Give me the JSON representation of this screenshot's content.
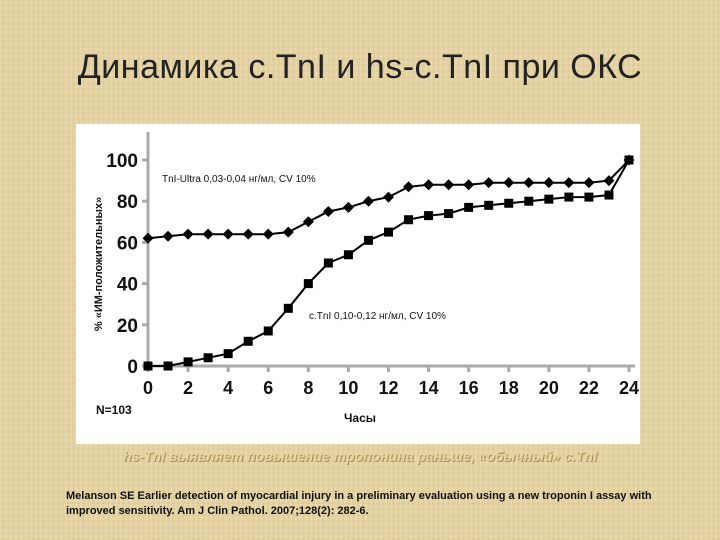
{
  "slide": {
    "title": "Динамика c.TnI и hs-c.TnI при ОКС",
    "caption": "hs-TnI выявляет повышение тропонина раньше, «обычный» c.TnI",
    "reference": "Melanson SE Earlier detection of myocardial injury in a preliminary evaluation using a new troponin I assay with improved sensitivity. Am J Clin Pathol. 2007;128(2): 282-6."
  },
  "chart_data": {
    "type": "line",
    "xlabel": "Часы",
    "ylabel": "% «ИМ-положительных»",
    "xlim": [
      0,
      24
    ],
    "ylim": [
      0,
      100
    ],
    "x_ticks": [
      "0",
      "2",
      "4",
      "6",
      "8",
      "10",
      "12",
      "14",
      "16",
      "18",
      "20",
      "22",
      "24"
    ],
    "y_ticks": [
      "0",
      "20",
      "40",
      "60",
      "80",
      "100"
    ],
    "grid": false,
    "legend": "none",
    "note": "N=103",
    "series": [
      {
        "name": "TnI-Ultra 0,03-0,04 нг/мл, CV 10%",
        "marker": "diamond",
        "color": "#000000",
        "x": [
          0,
          1,
          2,
          3,
          4,
          5,
          6,
          7,
          8,
          9,
          10,
          11,
          12,
          13,
          14,
          15,
          16,
          17,
          18,
          19,
          20,
          21,
          22,
          23,
          24
        ],
        "y": [
          62,
          63,
          64,
          64,
          64,
          64,
          64,
          65,
          70,
          75,
          77,
          80,
          82,
          87,
          88,
          88,
          88,
          89,
          89,
          89,
          89,
          89,
          89,
          90,
          100
        ]
      },
      {
        "name": "c.TnI 0,10-0,12 нг/мл, CV 10%",
        "marker": "square",
        "color": "#000000",
        "x": [
          0,
          1,
          2,
          3,
          4,
          5,
          6,
          7,
          8,
          9,
          10,
          11,
          12,
          13,
          14,
          15,
          16,
          17,
          18,
          19,
          20,
          21,
          22,
          23,
          24
        ],
        "y": [
          0,
          0,
          2,
          4,
          6,
          12,
          17,
          28,
          40,
          50,
          54,
          61,
          65,
          71,
          73,
          74,
          77,
          78,
          79,
          80,
          81,
          82,
          82,
          83,
          100
        ]
      }
    ]
  }
}
